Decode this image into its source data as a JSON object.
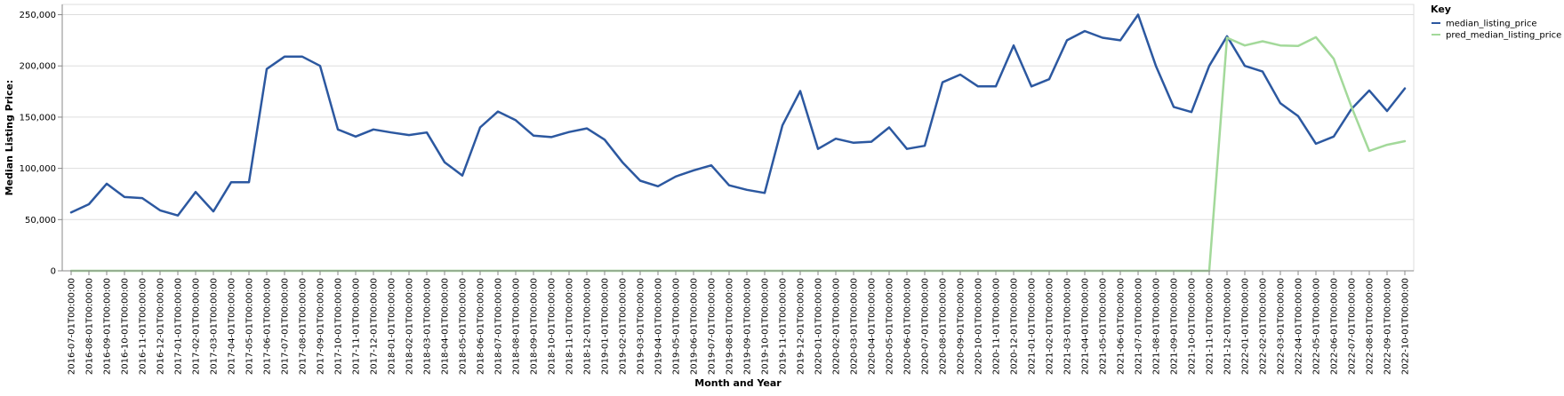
{
  "chart_data": {
    "type": "line",
    "title": "",
    "xlabel": "Month and Year",
    "ylabel": "Median Listing Price:",
    "ylim": [
      0,
      260000
    ],
    "yticks": [
      0,
      50000,
      100000,
      150000,
      200000,
      250000
    ],
    "ytick_labels": [
      "0",
      "50,000",
      "100,000",
      "150,000",
      "200,000",
      "250,000"
    ],
    "grid": true,
    "legend": {
      "title": "Key",
      "placement": "top-right"
    },
    "categories": [
      "2016-07-01T00:00:00",
      "2016-08-01T00:00:00",
      "2016-09-01T00:00:00",
      "2016-10-01T00:00:00",
      "2016-11-01T00:00:00",
      "2016-12-01T00:00:00",
      "2017-01-01T00:00:00",
      "2017-02-01T00:00:00",
      "2017-03-01T00:00:00",
      "2017-04-01T00:00:00",
      "2017-05-01T00:00:00",
      "2017-06-01T00:00:00",
      "2017-07-01T00:00:00",
      "2017-08-01T00:00:00",
      "2017-09-01T00:00:00",
      "2017-10-01T00:00:00",
      "2017-11-01T00:00:00",
      "2017-12-01T00:00:00",
      "2018-01-01T00:00:00",
      "2018-02-01T00:00:00",
      "2018-03-01T00:00:00",
      "2018-04-01T00:00:00",
      "2018-05-01T00:00:00",
      "2018-06-01T00:00:00",
      "2018-07-01T00:00:00",
      "2018-08-01T00:00:00",
      "2018-09-01T00:00:00",
      "2018-10-01T00:00:00",
      "2018-11-01T00:00:00",
      "2018-12-01T00:00:00",
      "2019-01-01T00:00:00",
      "2019-02-01T00:00:00",
      "2019-03-01T00:00:00",
      "2019-04-01T00:00:00",
      "2019-05-01T00:00:00",
      "2019-06-01T00:00:00",
      "2019-07-01T00:00:00",
      "2019-08-01T00:00:00",
      "2019-09-01T00:00:00",
      "2019-10-01T00:00:00",
      "2019-11-01T00:00:00",
      "2019-12-01T00:00:00",
      "2020-01-01T00:00:00",
      "2020-02-01T00:00:00",
      "2020-03-01T00:00:00",
      "2020-04-01T00:00:00",
      "2020-05-01T00:00:00",
      "2020-06-01T00:00:00",
      "2020-07-01T00:00:00",
      "2020-08-01T00:00:00",
      "2020-09-01T00:00:00",
      "2020-10-01T00:00:00",
      "2020-11-01T00:00:00",
      "2020-12-01T00:00:00",
      "2021-01-01T00:00:00",
      "2021-02-01T00:00:00",
      "2021-03-01T00:00:00",
      "2021-04-01T00:00:00",
      "2021-05-01T00:00:00",
      "2021-06-01T00:00:00",
      "2021-07-01T00:00:00",
      "2021-08-01T00:00:00",
      "2021-09-01T00:00:00",
      "2021-10-01T00:00:00",
      "2021-11-01T00:00:00",
      "2021-12-01T00:00:00",
      "2022-01-01T00:00:00",
      "2022-02-01T00:00:00",
      "2022-03-01T00:00:00",
      "2022-04-01T00:00:00",
      "2022-05-01T00:00:00",
      "2022-06-01T00:00:00",
      "2022-07-01T00:00:00",
      "2022-08-01T00:00:00",
      "2022-09-01T00:00:00",
      "2022-10-01T00:00:00"
    ],
    "series": [
      {
        "name": "median_listing_price",
        "color": "#2c58a0",
        "values": [
          57000,
          65000,
          85000,
          72000,
          71000,
          59000,
          54000,
          77000,
          58000,
          86500,
          86500,
          197000,
          209000,
          209000,
          200000,
          138000,
          131000,
          138000,
          135000,
          132500,
          135000,
          106000,
          93000,
          140000,
          155500,
          147000,
          132000,
          130500,
          135500,
          139000,
          128000,
          106000,
          88000,
          82500,
          92000,
          98000,
          103000,
          83500,
          79000,
          76000,
          142000,
          175500,
          119000,
          129000,
          125000,
          126000,
          140000,
          119000,
          122000,
          184000,
          191500,
          180000,
          180000,
          220000,
          180000,
          187000,
          225000,
          234000,
          227500,
          225000,
          250000,
          200000,
          160000,
          155000,
          200000,
          229000,
          200000,
          194500,
          163500,
          151000,
          124000,
          131000,
          158000,
          176000,
          156000,
          178000
        ]
      },
      {
        "name": "pred_median_listing_price",
        "color": "#a3d99a",
        "values": [
          0,
          0,
          0,
          0,
          0,
          0,
          0,
          0,
          0,
          0,
          0,
          0,
          0,
          0,
          0,
          0,
          0,
          0,
          0,
          0,
          0,
          0,
          0,
          0,
          0,
          0,
          0,
          0,
          0,
          0,
          0,
          0,
          0,
          0,
          0,
          0,
          0,
          0,
          0,
          0,
          0,
          0,
          0,
          0,
          0,
          0,
          0,
          0,
          0,
          0,
          0,
          0,
          0,
          0,
          0,
          0,
          0,
          0,
          0,
          0,
          0,
          0,
          0,
          0,
          0,
          227500,
          220000,
          224000,
          220000,
          219500,
          228000,
          207000,
          160000,
          117000,
          123000,
          126500
        ]
      }
    ]
  }
}
